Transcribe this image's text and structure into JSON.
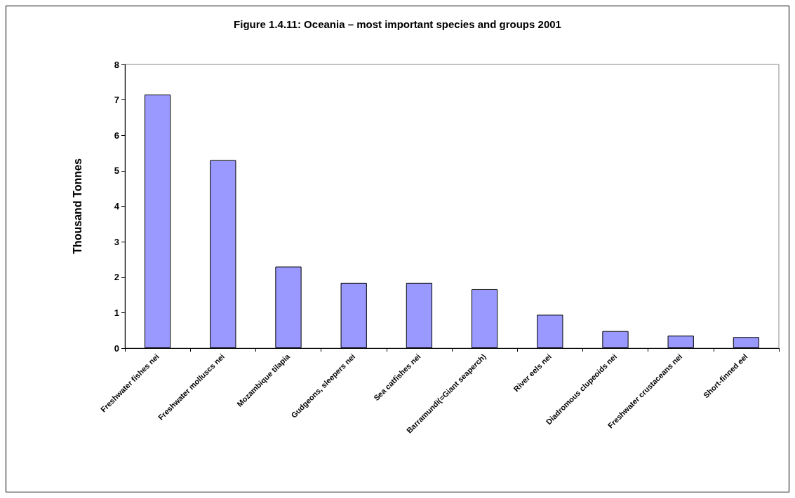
{
  "chart_data": {
    "type": "bar",
    "title": "Figure 1.4.11: Oceania – most important species and groups 2001",
    "ylabel": "Thousand Tonnes",
    "categories": [
      "Freshwater fishes nei",
      "Freshwater molluscs nei",
      "Mozambique tilapia",
      "Gudgeons, sleepers nei",
      "Sea catfishes nei",
      "Barramundi(=Giant seaperch)",
      "River eels nei",
      "Diadromous clupeoids nei",
      "Freshwater crustaceans nei",
      "Short-finned eel"
    ],
    "values": [
      7.15,
      5.3,
      2.3,
      1.84,
      1.84,
      1.66,
      0.94,
      0.48,
      0.35,
      0.31
    ],
    "color": "#9999ff",
    "ylim": [
      0,
      8
    ],
    "yticks": [
      0,
      1,
      2,
      3,
      4,
      5,
      6,
      7,
      8
    ],
    "grid": false
  }
}
